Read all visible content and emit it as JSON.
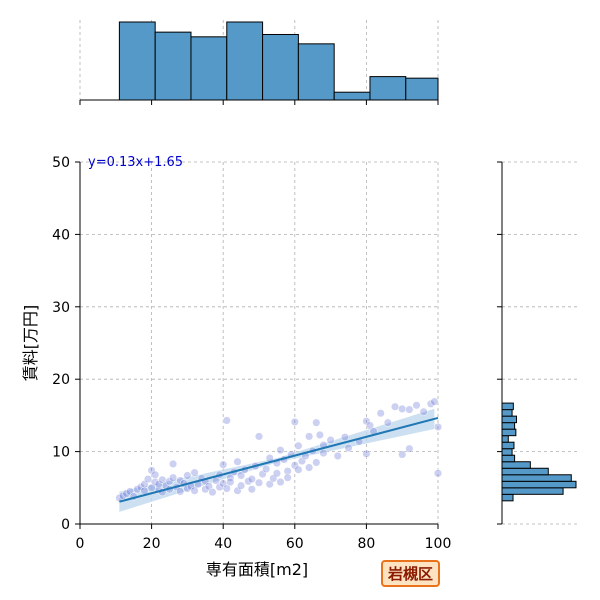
{
  "chart_data": {
    "type": "scatter",
    "xlabel": "専有面積[m2]",
    "ylabel": "賃料[万円]",
    "xlim": [
      0,
      100
    ],
    "ylim": [
      0,
      50
    ],
    "xticks": [
      "0",
      "20",
      "40",
      "60",
      "80",
      "100"
    ],
    "yticks": [
      "0",
      "10",
      "20",
      "30",
      "40",
      "50"
    ],
    "grid": true,
    "regression": {
      "slope": 0.13,
      "intercept": 1.65,
      "x_range": [
        11,
        100
      ],
      "label": "y=0.13x+1.65"
    },
    "points": [
      [
        11,
        3.6
      ],
      [
        12,
        3.9
      ],
      [
        13,
        4.2
      ],
      [
        14,
        4.5
      ],
      [
        15,
        3.8
      ],
      [
        16,
        4.8
      ],
      [
        17,
        5.1
      ],
      [
        18,
        5.5
      ],
      [
        18,
        4.6
      ],
      [
        19,
        6.2
      ],
      [
        20,
        5.0
      ],
      [
        20,
        7.4
      ],
      [
        21,
        5.8
      ],
      [
        21,
        6.8
      ],
      [
        22,
        4.7
      ],
      [
        22,
        5.5
      ],
      [
        23,
        6.1
      ],
      [
        23,
        4.4
      ],
      [
        24,
        5.3
      ],
      [
        25,
        5.9
      ],
      [
        25,
        4.8
      ],
      [
        26,
        8.3
      ],
      [
        26,
        6.4
      ],
      [
        27,
        5.1
      ],
      [
        28,
        4.5
      ],
      [
        28,
        6.0
      ],
      [
        29,
        5.6
      ],
      [
        30,
        4.9
      ],
      [
        30,
        6.7
      ],
      [
        31,
        5.2
      ],
      [
        32,
        7.1
      ],
      [
        32,
        4.6
      ],
      [
        33,
        5.5
      ],
      [
        34,
        6.3
      ],
      [
        35,
        4.8
      ],
      [
        35,
        5.9
      ],
      [
        36,
        5.2
      ],
      [
        37,
        4.4
      ],
      [
        38,
        6.0
      ],
      [
        39,
        6.8
      ],
      [
        39,
        5.1
      ],
      [
        40,
        5.6
      ],
      [
        40,
        8.2
      ],
      [
        41,
        14.3
      ],
      [
        41,
        4.9
      ],
      [
        42,
        6.4
      ],
      [
        42,
        5.8
      ],
      [
        43,
        7.2
      ],
      [
        44,
        4.6
      ],
      [
        44,
        8.6
      ],
      [
        45,
        5.3
      ],
      [
        45,
        6.7
      ],
      [
        46,
        7.5
      ],
      [
        47,
        5.9
      ],
      [
        48,
        4.8
      ],
      [
        48,
        6.2
      ],
      [
        49,
        8.0
      ],
      [
        50,
        12.1
      ],
      [
        50,
        5.7
      ],
      [
        51,
        6.9
      ],
      [
        52,
        7.6
      ],
      [
        53,
        5.5
      ],
      [
        53,
        9.1
      ],
      [
        54,
        6.3
      ],
      [
        55,
        8.4
      ],
      [
        55,
        7.0
      ],
      [
        56,
        10.2
      ],
      [
        56,
        5.8
      ],
      [
        57,
        8.9
      ],
      [
        58,
        7.3
      ],
      [
        58,
        6.4
      ],
      [
        59,
        9.6
      ],
      [
        60,
        8.1
      ],
      [
        60,
        14.1
      ],
      [
        61,
        10.8
      ],
      [
        61,
        7.5
      ],
      [
        62,
        8.7
      ],
      [
        63,
        9.4
      ],
      [
        64,
        7.8
      ],
      [
        64,
        12.1
      ],
      [
        65,
        10.1
      ],
      [
        66,
        8.5
      ],
      [
        66,
        14.0
      ],
      [
        67,
        12.3
      ],
      [
        68,
        9.8
      ],
      [
        68,
        10.9
      ],
      [
        70,
        11.6
      ],
      [
        72,
        9.4
      ],
      [
        74,
        12.0
      ],
      [
        75,
        10.5
      ],
      [
        78,
        11.4
      ],
      [
        80,
        14.2
      ],
      [
        80,
        9.7
      ],
      [
        81,
        13.6
      ],
      [
        82,
        12.8
      ],
      [
        84,
        15.3
      ],
      [
        86,
        14.0
      ],
      [
        88,
        16.2
      ],
      [
        90,
        15.9
      ],
      [
        90,
        9.6
      ],
      [
        92,
        10.4
      ],
      [
        92,
        15.8
      ],
      [
        94,
        16.4
      ],
      [
        96,
        15.5
      ],
      [
        98,
        16.6
      ],
      [
        99,
        16.9
      ],
      [
        100,
        7.0
      ],
      [
        100,
        13.4
      ]
    ],
    "x_hist": {
      "bin_edges": [
        11,
        21,
        31,
        41,
        51,
        61,
        71,
        81,
        91,
        101
      ],
      "counts": [
        10,
        8.7,
        8.1,
        10,
        8.4,
        7.2,
        1,
        3,
        2.8
      ]
    },
    "y_hist": {
      "bin_edges": [
        3.2,
        4.1,
        5.0,
        5.9,
        6.8,
        7.7,
        8.6,
        9.5,
        10.4,
        11.3,
        12.2,
        13.1,
        14.0,
        14.9,
        15.8,
        16.7
      ],
      "counts": [
        3.5,
        19.4,
        23.5,
        22.0,
        14.7,
        9.0,
        4.0,
        3.2,
        3.8,
        2.0,
        4.4,
        4.0,
        4.6,
        3.2,
        3.6
      ]
    }
  },
  "region_label": "岩槻区",
  "colors": {
    "bar": "#5599c8",
    "line": "#1f77b4",
    "scatter": "#6d79d6",
    "band": "#bfd8ee",
    "equation": "#0000cc",
    "badge_border": "#e8731a",
    "badge_bg": "#fde3c2",
    "badge_text": "#8b1a00"
  }
}
